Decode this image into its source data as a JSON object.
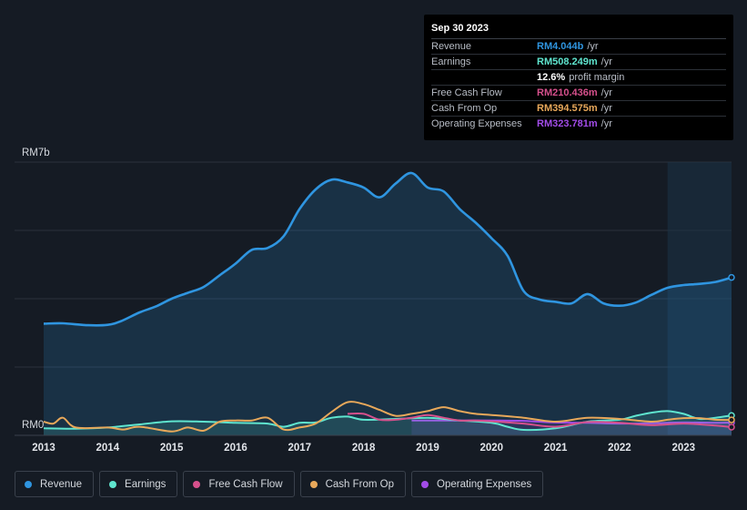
{
  "tooltip": {
    "date": "Sep 30 2023",
    "rows": [
      {
        "label": "Revenue",
        "value": "RM4.044b",
        "unit": "/yr",
        "color": "#2f95e0"
      },
      {
        "label": "Earnings",
        "value": "RM508.249m",
        "unit": "/yr",
        "color": "#5fe5cf"
      },
      {
        "label": "",
        "value": "12.6%",
        "unit": "profit margin",
        "color": "#ffffff"
      },
      {
        "label": "Free Cash Flow",
        "value": "RM210.436m",
        "unit": "/yr",
        "color": "#d6508c"
      },
      {
        "label": "Cash From Op",
        "value": "RM394.575m",
        "unit": "/yr",
        "color": "#e8a85a"
      },
      {
        "label": "Operating Expenses",
        "value": "RM323.781m",
        "unit": "/yr",
        "color": "#a24ce8"
      }
    ]
  },
  "legend": [
    {
      "label": "Revenue",
      "color": "#2f95e0"
    },
    {
      "label": "Earnings",
      "color": "#5fe5cf"
    },
    {
      "label": "Free Cash Flow",
      "color": "#d6508c"
    },
    {
      "label": "Cash From Op",
      "color": "#e8a85a"
    },
    {
      "label": "Operating Expenses",
      "color": "#a24ce8"
    }
  ],
  "chart_data": {
    "type": "area",
    "title": "",
    "xlabel": "",
    "ylabel": "",
    "y_top_label": "RM7b",
    "y_bottom_label": "RM0",
    "ylim": [
      0,
      7
    ],
    "xlim": [
      2013.0,
      2023.75
    ],
    "x_ticks": [
      "2013",
      "2014",
      "2015",
      "2016",
      "2017",
      "2018",
      "2019",
      "2020",
      "2021",
      "2022",
      "2023"
    ],
    "forecast_start": 2022.75,
    "series": [
      {
        "name": "Revenue",
        "color": "#2f95e0",
        "fill": true,
        "points": [
          [
            2013.0,
            2.86
          ],
          [
            2013.3,
            2.87
          ],
          [
            2013.7,
            2.82
          ],
          [
            2014.0,
            2.83
          ],
          [
            2014.2,
            2.92
          ],
          [
            2014.5,
            3.15
          ],
          [
            2014.75,
            3.3
          ],
          [
            2015.0,
            3.5
          ],
          [
            2015.25,
            3.65
          ],
          [
            2015.5,
            3.8
          ],
          [
            2015.75,
            4.1
          ],
          [
            2016.0,
            4.4
          ],
          [
            2016.25,
            4.75
          ],
          [
            2016.5,
            4.8
          ],
          [
            2016.75,
            5.1
          ],
          [
            2017.0,
            5.8
          ],
          [
            2017.25,
            6.3
          ],
          [
            2017.5,
            6.55
          ],
          [
            2017.75,
            6.48
          ],
          [
            2018.0,
            6.35
          ],
          [
            2018.25,
            6.1
          ],
          [
            2018.5,
            6.45
          ],
          [
            2018.75,
            6.72
          ],
          [
            2019.0,
            6.35
          ],
          [
            2019.25,
            6.25
          ],
          [
            2019.5,
            5.8
          ],
          [
            2019.75,
            5.45
          ],
          [
            2020.0,
            5.05
          ],
          [
            2020.25,
            4.6
          ],
          [
            2020.5,
            3.7
          ],
          [
            2020.75,
            3.48
          ],
          [
            2021.0,
            3.42
          ],
          [
            2021.25,
            3.38
          ],
          [
            2021.5,
            3.62
          ],
          [
            2021.75,
            3.38
          ],
          [
            2022.0,
            3.32
          ],
          [
            2022.25,
            3.4
          ],
          [
            2022.5,
            3.6
          ],
          [
            2022.75,
            3.78
          ],
          [
            2023.0,
            3.85
          ],
          [
            2023.25,
            3.88
          ],
          [
            2023.5,
            3.93
          ],
          [
            2023.75,
            4.044
          ]
        ]
      },
      {
        "name": "Earnings",
        "color": "#5fe5cf",
        "fill": true,
        "points": [
          [
            2013.0,
            0.18
          ],
          [
            2013.5,
            0.17
          ],
          [
            2014.0,
            0.2
          ],
          [
            2014.5,
            0.28
          ],
          [
            2015.0,
            0.36
          ],
          [
            2015.5,
            0.35
          ],
          [
            2016.0,
            0.32
          ],
          [
            2016.5,
            0.3
          ],
          [
            2016.75,
            0.22
          ],
          [
            2017.0,
            0.32
          ],
          [
            2017.25,
            0.33
          ],
          [
            2017.5,
            0.45
          ],
          [
            2017.75,
            0.48
          ],
          [
            2018.0,
            0.4
          ],
          [
            2018.5,
            0.42
          ],
          [
            2019.0,
            0.45
          ],
          [
            2019.25,
            0.42
          ],
          [
            2019.5,
            0.38
          ],
          [
            2020.0,
            0.32
          ],
          [
            2020.25,
            0.22
          ],
          [
            2020.5,
            0.14
          ],
          [
            2021.0,
            0.18
          ],
          [
            2021.5,
            0.35
          ],
          [
            2022.0,
            0.4
          ],
          [
            2022.25,
            0.5
          ],
          [
            2022.5,
            0.58
          ],
          [
            2022.75,
            0.62
          ],
          [
            2023.0,
            0.55
          ],
          [
            2023.25,
            0.42
          ],
          [
            2023.5,
            0.45
          ],
          [
            2023.75,
            0.508
          ]
        ]
      },
      {
        "name": "Free Cash Flow",
        "color": "#d6508c",
        "fill": false,
        "points": [
          [
            2017.75,
            0.55
          ],
          [
            2018.0,
            0.55
          ],
          [
            2018.25,
            0.4
          ],
          [
            2018.5,
            0.4
          ],
          [
            2018.75,
            0.45
          ],
          [
            2019.0,
            0.52
          ],
          [
            2019.25,
            0.45
          ],
          [
            2019.5,
            0.38
          ],
          [
            2019.75,
            0.38
          ],
          [
            2020.0,
            0.36
          ],
          [
            2020.5,
            0.3
          ],
          [
            2021.0,
            0.22
          ],
          [
            2021.5,
            0.34
          ],
          [
            2022.0,
            0.32
          ],
          [
            2022.5,
            0.26
          ],
          [
            2023.0,
            0.3
          ],
          [
            2023.5,
            0.25
          ],
          [
            2023.75,
            0.21
          ]
        ]
      },
      {
        "name": "Cash From Op",
        "color": "#e8a85a",
        "fill": false,
        "points": [
          [
            2013.0,
            0.35
          ],
          [
            2013.15,
            0.3
          ],
          [
            2013.3,
            0.45
          ],
          [
            2013.5,
            0.2
          ],
          [
            2014.0,
            0.2
          ],
          [
            2014.25,
            0.15
          ],
          [
            2014.5,
            0.22
          ],
          [
            2015.0,
            0.1
          ],
          [
            2015.25,
            0.2
          ],
          [
            2015.5,
            0.12
          ],
          [
            2015.75,
            0.35
          ],
          [
            2016.0,
            0.38
          ],
          [
            2016.25,
            0.38
          ],
          [
            2016.5,
            0.45
          ],
          [
            2016.75,
            0.15
          ],
          [
            2017.0,
            0.2
          ],
          [
            2017.25,
            0.3
          ],
          [
            2017.5,
            0.6
          ],
          [
            2017.75,
            0.85
          ],
          [
            2018.0,
            0.8
          ],
          [
            2018.25,
            0.65
          ],
          [
            2018.5,
            0.5
          ],
          [
            2018.75,
            0.55
          ],
          [
            2019.0,
            0.62
          ],
          [
            2019.25,
            0.72
          ],
          [
            2019.5,
            0.62
          ],
          [
            2019.75,
            0.55
          ],
          [
            2020.0,
            0.52
          ],
          [
            2020.5,
            0.45
          ],
          [
            2021.0,
            0.35
          ],
          [
            2021.5,
            0.45
          ],
          [
            2022.0,
            0.42
          ],
          [
            2022.5,
            0.35
          ],
          [
            2022.75,
            0.4
          ],
          [
            2023.0,
            0.44
          ],
          [
            2023.25,
            0.44
          ],
          [
            2023.5,
            0.4
          ],
          [
            2023.75,
            0.395
          ]
        ]
      },
      {
        "name": "Operating Expenses",
        "color": "#a24ce8",
        "fill": true,
        "points": [
          [
            2018.75,
            0.38
          ],
          [
            2019.0,
            0.38
          ],
          [
            2019.5,
            0.38
          ],
          [
            2020.0,
            0.38
          ],
          [
            2020.5,
            0.37
          ],
          [
            2021.0,
            0.33
          ],
          [
            2021.5,
            0.32
          ],
          [
            2022.0,
            0.3
          ],
          [
            2022.5,
            0.31
          ],
          [
            2023.0,
            0.33
          ],
          [
            2023.5,
            0.32
          ],
          [
            2023.75,
            0.324
          ]
        ]
      }
    ]
  }
}
